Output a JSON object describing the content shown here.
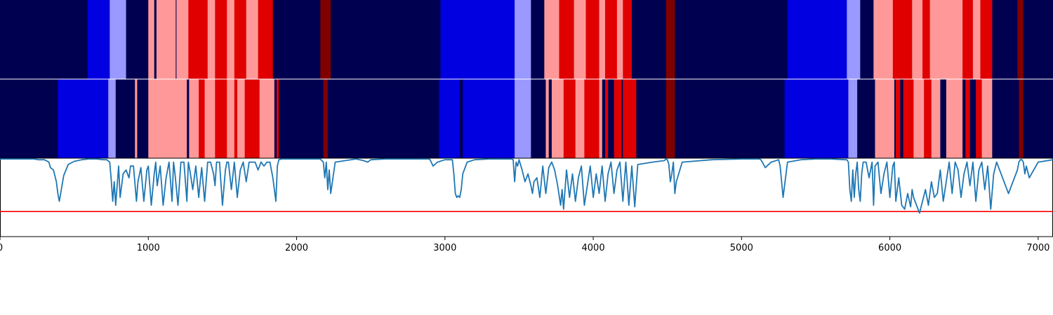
{
  "colors": {
    "c0": "#000050",
    "c1": "#0000e0",
    "c2": "#9999ff",
    "c3": "#ff9999",
    "c4": "#e00000",
    "c5": "#800000",
    "line": "#1f77b4",
    "threshold": "#ff0000"
  },
  "chart_data": {
    "type": "heatmap",
    "title": "",
    "xlabel": "",
    "ylabel": "",
    "xlim": [
      0,
      7100
    ],
    "x_ticks": [
      "0",
      "1000",
      "2000",
      "3000",
      "4000",
      "5000",
      "6000",
      "7000"
    ],
    "x_tick_values": [
      0,
      1000,
      2000,
      3000,
      4000,
      5000,
      6000,
      7000
    ],
    "state_rows": [
      {
        "segments": [
          [
            0,
            590,
            "c0"
          ],
          [
            590,
            740,
            "c1"
          ],
          [
            740,
            850,
            "c2"
          ],
          [
            850,
            1000,
            "c0"
          ],
          [
            1000,
            1040,
            "c3"
          ],
          [
            1040,
            1055,
            "c0"
          ],
          [
            1055,
            1185,
            "c3"
          ],
          [
            1185,
            1190,
            "c0"
          ],
          [
            1190,
            1270,
            "c3"
          ],
          [
            1270,
            1400,
            "c4"
          ],
          [
            1400,
            1450,
            "c3"
          ],
          [
            1450,
            1530,
            "c4"
          ],
          [
            1530,
            1580,
            "c3"
          ],
          [
            1580,
            1660,
            "c4"
          ],
          [
            1660,
            1740,
            "c3"
          ],
          [
            1740,
            1840,
            "c4"
          ],
          [
            1840,
            2160,
            "c0"
          ],
          [
            2160,
            2230,
            "c5"
          ],
          [
            2230,
            2970,
            "c0"
          ],
          [
            2970,
            3470,
            "c1"
          ],
          [
            3470,
            3580,
            "c2"
          ],
          [
            3580,
            3670,
            "c0"
          ],
          [
            3670,
            3770,
            "c3"
          ],
          [
            3770,
            3870,
            "c4"
          ],
          [
            3870,
            3950,
            "c3"
          ],
          [
            3950,
            4040,
            "c4"
          ],
          [
            4040,
            4080,
            "c3"
          ],
          [
            4080,
            4160,
            "c4"
          ],
          [
            4160,
            4200,
            "c3"
          ],
          [
            4200,
            4260,
            "c4"
          ],
          [
            4260,
            4490,
            "c0"
          ],
          [
            4490,
            4550,
            "c5"
          ],
          [
            4550,
            5310,
            "c0"
          ],
          [
            5310,
            5710,
            "c1"
          ],
          [
            5710,
            5800,
            "c2"
          ],
          [
            5800,
            5890,
            "c0"
          ],
          [
            5890,
            6020,
            "c3"
          ],
          [
            6020,
            6150,
            "c4"
          ],
          [
            6150,
            6220,
            "c3"
          ],
          [
            6220,
            6270,
            "c4"
          ],
          [
            6270,
            6490,
            "c3"
          ],
          [
            6490,
            6560,
            "c4"
          ],
          [
            6560,
            6610,
            "c3"
          ],
          [
            6610,
            6690,
            "c4"
          ],
          [
            6690,
            6860,
            "c0"
          ],
          [
            6860,
            6900,
            "c5"
          ],
          [
            6900,
            7100,
            "c0"
          ]
        ]
      },
      {
        "segments": [
          [
            0,
            390,
            "c0"
          ],
          [
            390,
            730,
            "c1"
          ],
          [
            730,
            780,
            "c2"
          ],
          [
            780,
            910,
            "c0"
          ],
          [
            910,
            925,
            "c3"
          ],
          [
            925,
            1000,
            "c0"
          ],
          [
            1000,
            1260,
            "c3"
          ],
          [
            1260,
            1275,
            "c0"
          ],
          [
            1275,
            1340,
            "c3"
          ],
          [
            1340,
            1380,
            "c4"
          ],
          [
            1380,
            1450,
            "c3"
          ],
          [
            1450,
            1530,
            "c4"
          ],
          [
            1530,
            1580,
            "c3"
          ],
          [
            1580,
            1600,
            "c4"
          ],
          [
            1600,
            1650,
            "c3"
          ],
          [
            1650,
            1750,
            "c4"
          ],
          [
            1750,
            1850,
            "c3"
          ],
          [
            1850,
            1865,
            "c0"
          ],
          [
            1865,
            1880,
            "c4"
          ],
          [
            1880,
            2180,
            "c0"
          ],
          [
            2180,
            2210,
            "c5"
          ],
          [
            2210,
            2960,
            "c0"
          ],
          [
            2960,
            3100,
            "c1"
          ],
          [
            3100,
            3120,
            "c0"
          ],
          [
            3120,
            3470,
            "c1"
          ],
          [
            3470,
            3580,
            "c2"
          ],
          [
            3580,
            3680,
            "c0"
          ],
          [
            3680,
            3700,
            "c3"
          ],
          [
            3700,
            3720,
            "c0"
          ],
          [
            3720,
            3800,
            "c3"
          ],
          [
            3800,
            3880,
            "c4"
          ],
          [
            3880,
            3940,
            "c3"
          ],
          [
            3940,
            4040,
            "c4"
          ],
          [
            4040,
            4060,
            "c3"
          ],
          [
            4060,
            4080,
            "c0"
          ],
          [
            4080,
            4100,
            "c4"
          ],
          [
            4100,
            4140,
            "c0"
          ],
          [
            4140,
            4190,
            "c4"
          ],
          [
            4190,
            4200,
            "c0"
          ],
          [
            4200,
            4290,
            "c4"
          ],
          [
            4290,
            4490,
            "c0"
          ],
          [
            4490,
            4550,
            "c5"
          ],
          [
            4550,
            5290,
            "c0"
          ],
          [
            5290,
            5720,
            "c1"
          ],
          [
            5720,
            5780,
            "c2"
          ],
          [
            5780,
            5900,
            "c0"
          ],
          [
            5900,
            6030,
            "c3"
          ],
          [
            6030,
            6040,
            "c0"
          ],
          [
            6040,
            6070,
            "c4"
          ],
          [
            6070,
            6090,
            "c0"
          ],
          [
            6090,
            6160,
            "c4"
          ],
          [
            6160,
            6230,
            "c3"
          ],
          [
            6230,
            6280,
            "c4"
          ],
          [
            6280,
            6340,
            "c3"
          ],
          [
            6340,
            6380,
            "c0"
          ],
          [
            6380,
            6490,
            "c3"
          ],
          [
            6490,
            6510,
            "c0"
          ],
          [
            6510,
            6540,
            "c4"
          ],
          [
            6540,
            6580,
            "c0"
          ],
          [
            6580,
            6620,
            "c4"
          ],
          [
            6620,
            6690,
            "c3"
          ],
          [
            6690,
            6870,
            "c0"
          ],
          [
            6870,
            6900,
            "c5"
          ],
          [
            6900,
            7100,
            "c0"
          ]
        ]
      }
    ],
    "line_ylim": [
      -1,
      0
    ],
    "threshold": -0.68,
    "line_series": {
      "x": [
        0,
        100,
        200,
        230,
        260,
        300,
        330,
        340,
        360,
        380,
        390,
        400,
        430,
        460,
        500,
        550,
        600,
        650,
        700,
        720,
        740,
        750,
        760,
        770,
        780,
        800,
        810,
        830,
        850,
        870,
        880,
        900,
        920,
        930,
        950,
        970,
        990,
        1000,
        1020,
        1040,
        1050,
        1060,
        1080,
        1100,
        1120,
        1140,
        1160,
        1170,
        1180,
        1200,
        1220,
        1240,
        1260,
        1270,
        1280,
        1300,
        1320,
        1340,
        1350,
        1360,
        1380,
        1400,
        1420,
        1440,
        1450,
        1460,
        1480,
        1500,
        1520,
        1530,
        1540,
        1560,
        1580,
        1600,
        1620,
        1640,
        1660,
        1680,
        1700,
        1720,
        1740,
        1760,
        1780,
        1800,
        1820,
        1840,
        1860,
        1870,
        1880,
        1900,
        2000,
        2100,
        2160,
        2180,
        2190,
        2200,
        2210,
        2220,
        2230,
        2260,
        2400,
        2450,
        2480,
        2500,
        2600,
        2800,
        2890,
        2900,
        2920,
        2950,
        3000,
        3050,
        3060,
        3070,
        3080,
        3090,
        3100,
        3110,
        3120,
        3150,
        3200,
        3300,
        3400,
        3450,
        3460,
        3470,
        3480,
        3490,
        3500,
        3520,
        3540,
        3560,
        3580,
        3590,
        3600,
        3620,
        3640,
        3660,
        3680,
        3700,
        3720,
        3740,
        3760,
        3780,
        3790,
        3800,
        3820,
        3840,
        3860,
        3880,
        3900,
        3920,
        3940,
        3960,
        3980,
        4000,
        4020,
        4040,
        4060,
        4080,
        4100,
        4120,
        4140,
        4160,
        4180,
        4200,
        4220,
        4240,
        4260,
        4280,
        4300,
        4400,
        4480,
        4490,
        4500,
        4510,
        4520,
        4530,
        4540,
        4550,
        4560,
        4600,
        4800,
        5000,
        5100,
        5120,
        5130,
        5140,
        5160,
        5200,
        5250,
        5260,
        5280,
        5300,
        5310,
        5400,
        5500,
        5600,
        5700,
        5710,
        5720,
        5730,
        5740,
        5750,
        5760,
        5770,
        5780,
        5790,
        5800,
        5810,
        5820,
        5840,
        5860,
        5880,
        5890,
        5900,
        5920,
        5940,
        5960,
        5980,
        6000,
        6020,
        6030,
        6040,
        6060,
        6080,
        6100,
        6120,
        6140,
        6150,
        6160,
        6180,
        6200,
        6220,
        6240,
        6260,
        6280,
        6300,
        6320,
        6340,
        6360,
        6380,
        6400,
        6420,
        6440,
        6460,
        6480,
        6500,
        6520,
        6540,
        6560,
        6580,
        6600,
        6620,
        6640,
        6660,
        6680,
        6700,
        6720,
        6800,
        6860,
        6870,
        6880,
        6890,
        6900,
        6910,
        6920,
        6940,
        7000,
        7100
      ],
      "y": [
        -0.01,
        -0.01,
        -0.01,
        -0.01,
        -0.02,
        -0.02,
        -0.05,
        -0.12,
        -0.15,
        -0.3,
        -0.45,
        -0.55,
        -0.22,
        -0.08,
        -0.04,
        -0.02,
        -0.01,
        -0.01,
        -0.02,
        -0.02,
        -0.05,
        -0.28,
        -0.55,
        -0.3,
        -0.6,
        -0.1,
        -0.5,
        -0.2,
        -0.15,
        -0.25,
        -0.1,
        -0.1,
        -0.55,
        -0.3,
        -0.12,
        -0.55,
        -0.15,
        -0.1,
        -0.6,
        -0.2,
        -0.05,
        -0.35,
        -0.1,
        -0.6,
        -0.25,
        -0.05,
        -0.55,
        -0.05,
        -0.2,
        -0.6,
        -0.05,
        -0.05,
        -0.55,
        -0.05,
        -0.15,
        -0.4,
        -0.1,
        -0.5,
        -0.3,
        -0.12,
        -0.55,
        -0.05,
        -0.05,
        -0.2,
        -0.35,
        -0.05,
        -0.05,
        -0.6,
        -0.15,
        -0.05,
        -0.05,
        -0.4,
        -0.05,
        -0.5,
        -0.15,
        -0.05,
        -0.3,
        -0.05,
        -0.05,
        -0.05,
        -0.15,
        -0.05,
        -0.1,
        -0.05,
        -0.05,
        -0.25,
        -0.55,
        -0.1,
        -0.02,
        -0.01,
        -0.01,
        -0.01,
        -0.01,
        -0.05,
        -0.25,
        -0.05,
        -0.4,
        -0.15,
        -0.45,
        -0.05,
        -0.01,
        -0.03,
        -0.05,
        -0.02,
        -0.01,
        -0.01,
        -0.01,
        -0.02,
        -0.1,
        -0.05,
        -0.02,
        -0.02,
        -0.2,
        -0.45,
        -0.5,
        -0.48,
        -0.5,
        -0.4,
        -0.2,
        -0.05,
        -0.02,
        -0.01,
        -0.01,
        -0.01,
        -0.02,
        -0.3,
        -0.05,
        -0.1,
        -0.02,
        -0.15,
        -0.3,
        -0.2,
        -0.35,
        -0.45,
        -0.3,
        -0.25,
        -0.5,
        -0.1,
        -0.45,
        -0.12,
        -0.05,
        -0.15,
        -0.35,
        -0.6,
        -0.4,
        -0.65,
        -0.15,
        -0.5,
        -0.2,
        -0.55,
        -0.25,
        -0.1,
        -0.6,
        -0.35,
        -0.1,
        -0.5,
        -0.2,
        -0.45,
        -0.1,
        -0.55,
        -0.2,
        -0.05,
        -0.45,
        -0.15,
        -0.05,
        -0.55,
        -0.05,
        -0.6,
        -0.1,
        -0.62,
        -0.08,
        -0.05,
        -0.03,
        -0.01,
        -0.02,
        -0.08,
        -0.3,
        -0.2,
        -0.05,
        -0.45,
        -0.3,
        -0.05,
        -0.02,
        -0.01,
        -0.01,
        -0.01,
        -0.02,
        -0.05,
        -0.12,
        -0.05,
        -0.02,
        -0.1,
        -0.5,
        -0.2,
        -0.05,
        -0.02,
        -0.01,
        -0.01,
        -0.02,
        -0.02,
        -0.05,
        -0.4,
        -0.55,
        -0.15,
        -0.5,
        -0.2,
        -0.05,
        -0.4,
        -0.55,
        -0.2,
        -0.05,
        -0.05,
        -0.25,
        -0.05,
        -0.6,
        -0.1,
        -0.05,
        -0.45,
        -0.2,
        -0.05,
        -0.5,
        -0.1,
        -0.05,
        -0.55,
        -0.25,
        -0.6,
        -0.65,
        -0.45,
        -0.62,
        -0.4,
        -0.5,
        -0.6,
        -0.7,
        -0.55,
        -0.4,
        -0.6,
        -0.3,
        -0.5,
        -0.45,
        -0.15,
        -0.55,
        -0.3,
        -0.05,
        -0.45,
        -0.05,
        -0.15,
        -0.5,
        -0.2,
        -0.05,
        -0.35,
        -0.05,
        -0.55,
        -0.15,
        -0.05,
        -0.4,
        -0.1,
        -0.65,
        -0.2,
        -0.05,
        -0.45,
        -0.15,
        -0.05,
        -0.02,
        -0.02,
        -0.05,
        -0.2,
        -0.1,
        -0.25,
        -0.05,
        -0.02,
        -0.02,
        -0.01,
        -0.01
      ]
    }
  }
}
